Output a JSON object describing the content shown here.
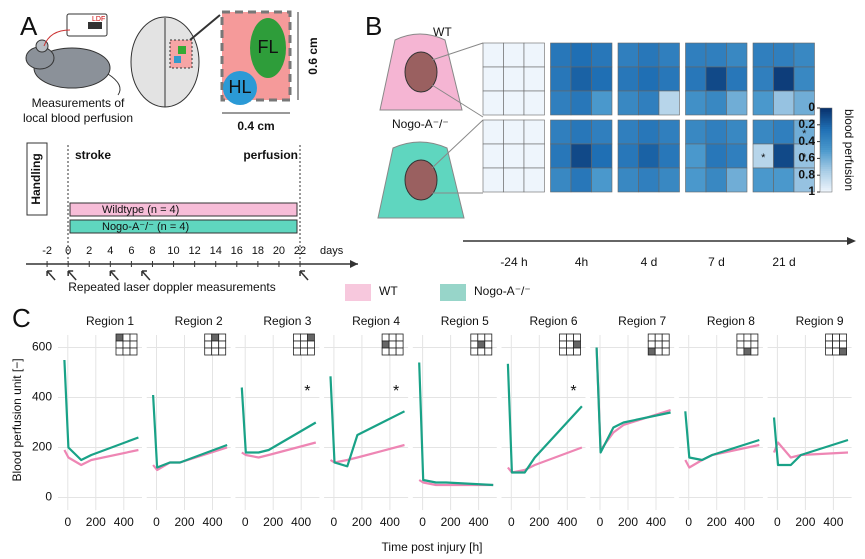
{
  "panel_labels": [
    "A",
    "B",
    "C"
  ],
  "panel_a": {
    "device_label": "LDF",
    "caption": [
      "Measurements of",
      "local blood perfusion"
    ],
    "regions": [
      "FL",
      "HL"
    ],
    "height_label": "0.6 cm",
    "width_label": "0.4 cm",
    "handling": "Handling",
    "stroke": "stroke",
    "perfusion": "perfusion",
    "groups": [
      {
        "name": "Wildtype (n = 4)",
        "color": "#f7bdd8"
      },
      {
        "name": "Nogo-A⁻/⁻ (n = 4)",
        "color": "#5fd6bf"
      }
    ],
    "timeline": {
      "xlim": [
        -4,
        27.5
      ],
      "xticks": [
        -2,
        0,
        2,
        4,
        6,
        8,
        10,
        12,
        14,
        16,
        18,
        20,
        22
      ],
      "unit": "days",
      "measurement_days": [
        -2,
        0,
        4,
        7,
        22
      ],
      "measurement_label": "Repeated laser doppler measurements"
    }
  },
  "chart_data": [
    {
      "type": "heatmap",
      "categories": [
        "-24 h",
        "4h",
        "4 d",
        "7 d",
        "21 d"
      ],
      "colorbar": {
        "label": "blood perfusion",
        "lim": [
          0,
          1
        ],
        "ticks": [
          0,
          0.2,
          0.4,
          0.6,
          0.8,
          1
        ],
        "colors": [
          "#08306b",
          "#1f6fb4",
          "#4a98cc",
          "#a9cde6",
          "#eef5fc"
        ]
      },
      "series": [
        {
          "name": "WT",
          "values": [
            [
              [
                1,
                1,
                1
              ],
              [
                1,
                1,
                1
              ],
              [
                1,
                1,
                1
              ]
            ],
            [
              [
                0.3,
                0.25,
                0.3
              ],
              [
                0.3,
                0.2,
                0.25
              ],
              [
                0.35,
                0.3,
                0.5
              ]
            ],
            [
              [
                0.35,
                0.3,
                0.35
              ],
              [
                0.3,
                0.25,
                0.3
              ],
              [
                0.4,
                0.35,
                0.8
              ]
            ],
            [
              [
                0.35,
                0.35,
                0.4
              ],
              [
                0.3,
                0.1,
                0.3
              ],
              [
                0.45,
                0.4,
                0.6
              ]
            ],
            [
              [
                0.35,
                0.35,
                0.4
              ],
              [
                0.35,
                0.05,
                0.4
              ],
              [
                0.5,
                0.7,
                0.6
              ]
            ]
          ]
        },
        {
          "name": "Nogo-A⁻/⁻",
          "values": [
            [
              [
                1,
                1,
                1
              ],
              [
                1,
                1,
                1
              ],
              [
                1,
                1,
                1
              ]
            ],
            [
              [
                0.35,
                0.3,
                0.35
              ],
              [
                0.3,
                0.1,
                0.25
              ],
              [
                0.4,
                0.3,
                0.5
              ]
            ],
            [
              [
                0.35,
                0.3,
                0.35
              ],
              [
                0.3,
                0.2,
                0.3
              ],
              [
                0.4,
                0.35,
                0.4
              ]
            ],
            [
              [
                0.4,
                0.35,
                0.4
              ],
              [
                0.5,
                0.3,
                0.35
              ],
              [
                0.5,
                0.4,
                0.6
              ]
            ],
            [
              [
                0.4,
                0.35,
                0.6
              ],
              [
                0.8,
                0.1,
                0.7
              ],
              [
                0.5,
                0.5,
                0.7
              ]
            ]
          ],
          "value_labels": [
            null,
            null,
            null,
            null,
            [
              [
                null,
                null,
                "*"
              ],
              [
                "*",
                null,
                "*"
              ],
              [
                null,
                null,
                null
              ]
            ]
          ]
        }
      ]
    },
    {
      "type": "line",
      "xlabel": "Time post injury [h]",
      "ylabel": "Blood perfusion unit [−]",
      "x": [
        -24,
        4,
        96,
        168,
        504
      ],
      "xlim": [
        -70,
        530
      ],
      "xticks": [
        0,
        200,
        400
      ],
      "ylim": [
        -50,
        650
      ],
      "yticks": [
        0,
        200,
        400,
        600
      ],
      "grid": true,
      "series": [
        {
          "name": "WT",
          "color": "#ee86b4"
        },
        {
          "name": "Nogo-A⁻/⁻",
          "color": "#19a287"
        }
      ],
      "facets": [
        {
          "title": "Region 1",
          "series": [
            {
              "values": [
                190,
                160,
                130,
                150,
                190
              ]
            },
            {
              "values": [
                550,
                200,
                150,
                170,
                240
              ]
            }
          ]
        },
        {
          "title": "Region 2",
          "series": [
            {
              "values": [
                130,
                110,
                140,
                140,
                200
              ]
            },
            {
              "values": [
                410,
                120,
                140,
                140,
                210
              ]
            }
          ]
        },
        {
          "title": "Region 3",
          "annotation": "*",
          "series": [
            {
              "values": [
                180,
                170,
                160,
                170,
                220
              ]
            },
            {
              "values": [
                440,
                180,
                180,
                190,
                300
              ]
            }
          ]
        },
        {
          "title": "Region 4",
          "annotation": "*",
          "series": [
            {
              "values": [
                150,
                140,
                150,
                160,
                210
              ]
            },
            {
              "values": [
                485,
                140,
                125,
                250,
                345
              ]
            }
          ]
        },
        {
          "title": "Region 5",
          "series": [
            {
              "values": [
                70,
                60,
                50,
                50,
                50
              ]
            },
            {
              "values": [
                540,
                70,
                60,
                60,
                50
              ]
            }
          ]
        },
        {
          "title": "Region 6",
          "annotation": "*",
          "series": [
            {
              "values": [
                120,
                100,
                110,
                130,
                200
              ]
            },
            {
              "values": [
                535,
                100,
                100,
                160,
                365
              ]
            }
          ]
        },
        {
          "title": "Region 7",
          "series": [
            {
              "values": [
                600,
                190,
                260,
                290,
                350
              ]
            },
            {
              "values": [
                600,
                180,
                280,
                300,
                340
              ]
            }
          ]
        },
        {
          "title": "Region 8",
          "series": [
            {
              "values": [
                150,
                120,
                150,
                170,
                210
              ]
            },
            {
              "values": [
                345,
                160,
                150,
                170,
                230
              ]
            }
          ]
        },
        {
          "title": "Region 9",
          "series": [
            {
              "values": [
                180,
                220,
                160,
                170,
                180
              ]
            },
            {
              "values": [
                320,
                130,
                130,
                170,
                230
              ]
            }
          ]
        }
      ]
    }
  ]
}
